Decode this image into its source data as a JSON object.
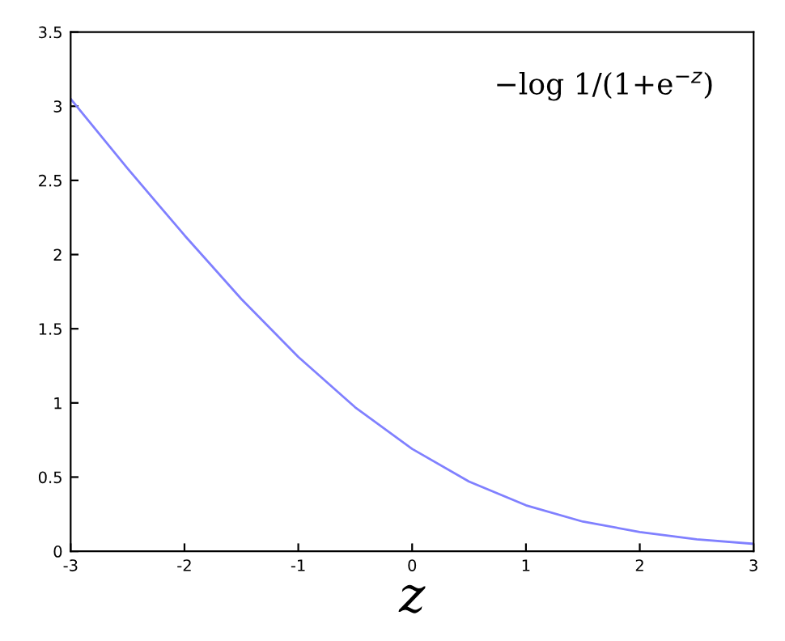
{
  "chart_data": {
    "type": "line",
    "xlabel": "z",
    "annotations": [
      "−log 1/(1+e$^{−z}$)"
    ],
    "x": [
      -3,
      -2.5,
      -2,
      -1.5,
      -1,
      -0.5,
      0,
      0.5,
      1,
      1.5,
      2,
      2.5,
      3
    ],
    "series": [
      {
        "color": "#8080ff",
        "values": [
          3.05,
          2.58,
          2.13,
          1.7,
          1.31,
          0.97,
          0.69,
          0.47,
          0.31,
          0.2,
          0.13,
          0.08,
          0.05
        ]
      }
    ],
    "xlim": [
      -3,
      3
    ],
    "ylim": [
      0,
      3.5
    ],
    "xticks": [
      -3,
      -2,
      -1,
      0,
      1,
      2,
      3
    ],
    "yticks": [
      0,
      0.5,
      1,
      1.5,
      2,
      2.5,
      3,
      3.5
    ],
    "grid": false,
    "legend": false,
    "marker": "none",
    "line_style": "solid"
  }
}
